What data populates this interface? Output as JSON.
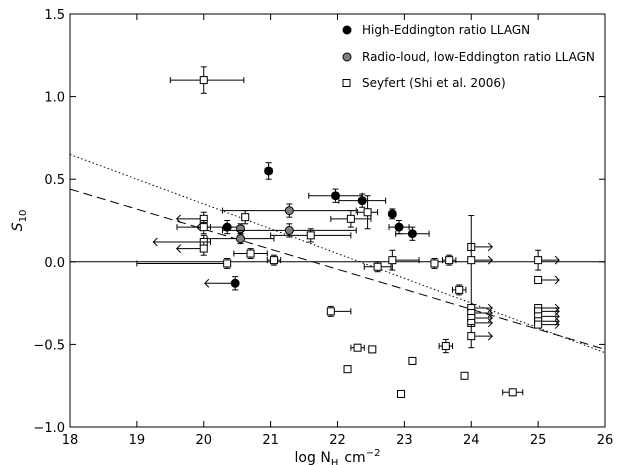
{
  "chart_data": {
    "type": "scatter",
    "xlabel": "log N",
    "xlabel_sub": "H",
    "xlabel_unit": "cm",
    "xlabel_unit_sup": "−2",
    "ylabel": "S",
    "ylabel_sub": "10",
    "xlim": [
      18,
      26
    ],
    "ylim": [
      -1.0,
      1.5
    ],
    "xticks": [
      18,
      19,
      20,
      21,
      22,
      23,
      24,
      25,
      26
    ],
    "xtick_labels": [
      "18",
      "19",
      "20",
      "21",
      "22",
      "23",
      "24",
      "25",
      "26"
    ],
    "yticks": [
      -1.0,
      -0.5,
      0.0,
      0.5,
      1.0,
      1.5
    ],
    "ytick_labels": [
      "−1.0",
      "−0.5",
      "0.0",
      "0.5",
      "1.0",
      "1.5"
    ],
    "grid": false,
    "legend_position": "top-right",
    "colors": {
      "high_edd": "#000000",
      "radio_loud": "#808080",
      "seyfert": "#ffffff"
    },
    "series": [
      {
        "name": "High-Eddington ratio LLAGN",
        "marker": "filled-circle",
        "color": "#000000",
        "points": [
          {
            "x": 20.35,
            "y": 0.21,
            "xerr": [
              0.2,
              0.2
            ],
            "yerr": 0.04,
            "arrow": "left"
          },
          {
            "x": 20.47,
            "y": -0.13,
            "xerr": [
              0.2,
              0.0
            ],
            "yerr": 0.04,
            "arrow": "left"
          },
          {
            "x": 20.97,
            "y": 0.55,
            "xerr": [
              0.05,
              0.05
            ],
            "yerr": 0.05
          },
          {
            "x": 21.97,
            "y": 0.4,
            "xerr": [
              0.4,
              0.4
            ],
            "yerr": 0.04
          },
          {
            "x": 22.37,
            "y": 0.37,
            "xerr": [
              0.35,
              0.35
            ],
            "yerr": 0.04
          },
          {
            "x": 22.82,
            "y": 0.29,
            "xerr": [
              0.05,
              0.05
            ],
            "yerr": 0.03
          },
          {
            "x": 22.92,
            "y": 0.21,
            "xerr": [
              0.15,
              0.15
            ],
            "yerr": 0.04
          },
          {
            "x": 23.12,
            "y": 0.17,
            "xerr": [
              0.25,
              0.25
            ],
            "yerr": 0.04
          }
        ]
      },
      {
        "name": "Radio-loud, low-Eddington ratio LLAGN",
        "marker": "filled-circle",
        "color": "#808080",
        "points": [
          {
            "x": 20.55,
            "y": 0.2,
            "xerr": [
              0.05,
              0.05
            ],
            "yerr": 0.03
          },
          {
            "x": 20.55,
            "y": 0.14,
            "xerr": [
              0.5,
              0.5
            ],
            "yerr": 0.03
          },
          {
            "x": 21.28,
            "y": 0.31,
            "xerr": [
              1.0,
              1.0
            ],
            "yerr": 0.04
          },
          {
            "x": 21.28,
            "y": 0.19,
            "xerr": [
              1.0,
              1.0
            ],
            "yerr": 0.04
          }
        ]
      },
      {
        "name": "Seyfert (Shi et al. 2006)",
        "marker": "open-square",
        "color": "#ffffff",
        "points": [
          {
            "x": 20.0,
            "y": 1.1,
            "xerr": [
              0.5,
              0.6
            ],
            "yerr": 0.08
          },
          {
            "x": 20.0,
            "y": 0.26,
            "xerr": [
              0.15,
              0.0
            ],
            "yerr": 0.04,
            "arrow": "left"
          },
          {
            "x": 20.0,
            "y": 0.21,
            "xerr": [
              0.4,
              0.1
            ],
            "yerr": 0.04
          },
          {
            "x": 20.0,
            "y": 0.12,
            "xerr": [
              0.5,
              0.1
            ],
            "yerr": 0.04,
            "arrow": "left"
          },
          {
            "x": 20.0,
            "y": 0.08,
            "xerr": [
              0.15,
              0.0
            ],
            "yerr": 0.04,
            "arrow": "left"
          },
          {
            "x": 20.35,
            "y": -0.01,
            "xerr": [
              1.35,
              0.0
            ],
            "yerr": 0.03
          },
          {
            "x": 20.62,
            "y": 0.27,
            "xerr": [
              0.05,
              0.05
            ],
            "yerr": 0.04
          },
          {
            "x": 20.7,
            "y": 0.05,
            "xerr": [
              0.25,
              0.25
            ],
            "yerr": 0.03
          },
          {
            "x": 21.05,
            "y": 0.01,
            "xerr": [
              0.1,
              0.1
            ],
            "yerr": 0.03
          },
          {
            "x": 21.6,
            "y": 0.16,
            "xerr": [
              0.6,
              0.6
            ],
            "yerr": 0.04
          },
          {
            "x": 21.9,
            "y": -0.3,
            "xerr": [
              0.0,
              0.3
            ],
            "yerr": 0.03
          },
          {
            "x": 22.15,
            "y": -0.65,
            "xerr": [
              0.05,
              0.05
            ],
            "yerr": 0.02
          },
          {
            "x": 22.2,
            "y": 0.26,
            "xerr": [
              0.3,
              0.3
            ],
            "yerr": 0.05
          },
          {
            "x": 22.3,
            "y": -0.52,
            "xerr": [
              0.1,
              0.1
            ],
            "yerr": 0.02
          },
          {
            "x": 22.45,
            "y": 0.3,
            "xerr": [
              0.15,
              0.15
            ],
            "yerr": 0.1
          },
          {
            "x": 22.52,
            "y": -0.53,
            "xerr": [
              0.05,
              0.05
            ],
            "yerr": 0.02
          },
          {
            "x": 22.6,
            "y": -0.03,
            "xerr": [
              0.2,
              0.2
            ],
            "yerr": 0.03
          },
          {
            "x": 22.82,
            "y": 0.01,
            "xerr": [
              0.05,
              0.4
            ],
            "yerr": 0.06
          },
          {
            "x": 22.95,
            "y": -0.8,
            "xerr": [
              0.05,
              0.05
            ],
            "yerr": 0.02
          },
          {
            "x": 23.12,
            "y": -0.6,
            "xerr": [
              0.05,
              0.05
            ],
            "yerr": 0.02
          },
          {
            "x": 23.45,
            "y": -0.01,
            "xerr": [
              0.05,
              0.05
            ],
            "yerr": 0.03
          },
          {
            "x": 23.62,
            "y": -0.51,
            "xerr": [
              0.1,
              0.1
            ],
            "yerr": 0.04
          },
          {
            "x": 23.67,
            "y": 0.01,
            "xerr": [
              0.1,
              0.1
            ],
            "yerr": 0.03
          },
          {
            "x": 23.82,
            "y": -0.17,
            "xerr": [
              0.1,
              0.1
            ],
            "yerr": 0.03
          },
          {
            "x": 23.9,
            "y": -0.69,
            "xerr": [
              0.05,
              0.05
            ],
            "yerr": 0.02
          },
          {
            "x": 24.0,
            "y": 0.09,
            "yerr": 0.0,
            "arrow": "right"
          },
          {
            "x": 24.0,
            "y": 0.01,
            "yerr": 0.27,
            "arrow": "right"
          },
          {
            "x": 24.0,
            "y": -0.28,
            "yerr": 0.0,
            "arrow": "right"
          },
          {
            "x": 24.0,
            "y": -0.31,
            "yerr": 0.0,
            "arrow": "right"
          },
          {
            "x": 24.0,
            "y": -0.34,
            "yerr": 0.0,
            "arrow": "right"
          },
          {
            "x": 24.0,
            "y": -0.37,
            "yerr": 0.0,
            "arrow": "right"
          },
          {
            "x": 24.0,
            "y": -0.45,
            "yerr": 0.07,
            "arrow": "right"
          },
          {
            "x": 24.62,
            "y": -0.79,
            "xerr": [
              0.15,
              0.15
            ],
            "yerr": 0.02
          },
          {
            "x": 25.0,
            "y": 0.01,
            "yerr": 0.06,
            "arrow": "right"
          },
          {
            "x": 25.0,
            "y": -0.11,
            "yerr": 0.0,
            "arrow": "right"
          },
          {
            "x": 25.0,
            "y": -0.28,
            "yerr": 0.0,
            "arrow": "right"
          },
          {
            "x": 25.0,
            "y": -0.3,
            "yerr": 0.0,
            "arrow": "right"
          },
          {
            "x": 25.0,
            "y": -0.33,
            "yerr": 0.0,
            "arrow": "right"
          },
          {
            "x": 25.0,
            "y": -0.36,
            "yerr": 0.0,
            "arrow": "right"
          },
          {
            "x": 25.0,
            "y": -0.38,
            "yerr": 0.0,
            "arrow": "right"
          }
        ]
      }
    ],
    "lines": [
      {
        "style": "solid",
        "x": [
          18,
          26
        ],
        "y": [
          0.0,
          0.0
        ]
      },
      {
        "style": "dashed",
        "x": [
          18,
          26
        ],
        "y": [
          0.44,
          -0.53
        ]
      },
      {
        "style": "dotted",
        "x": [
          18,
          26
        ],
        "y": [
          0.65,
          -0.55
        ]
      }
    ]
  }
}
